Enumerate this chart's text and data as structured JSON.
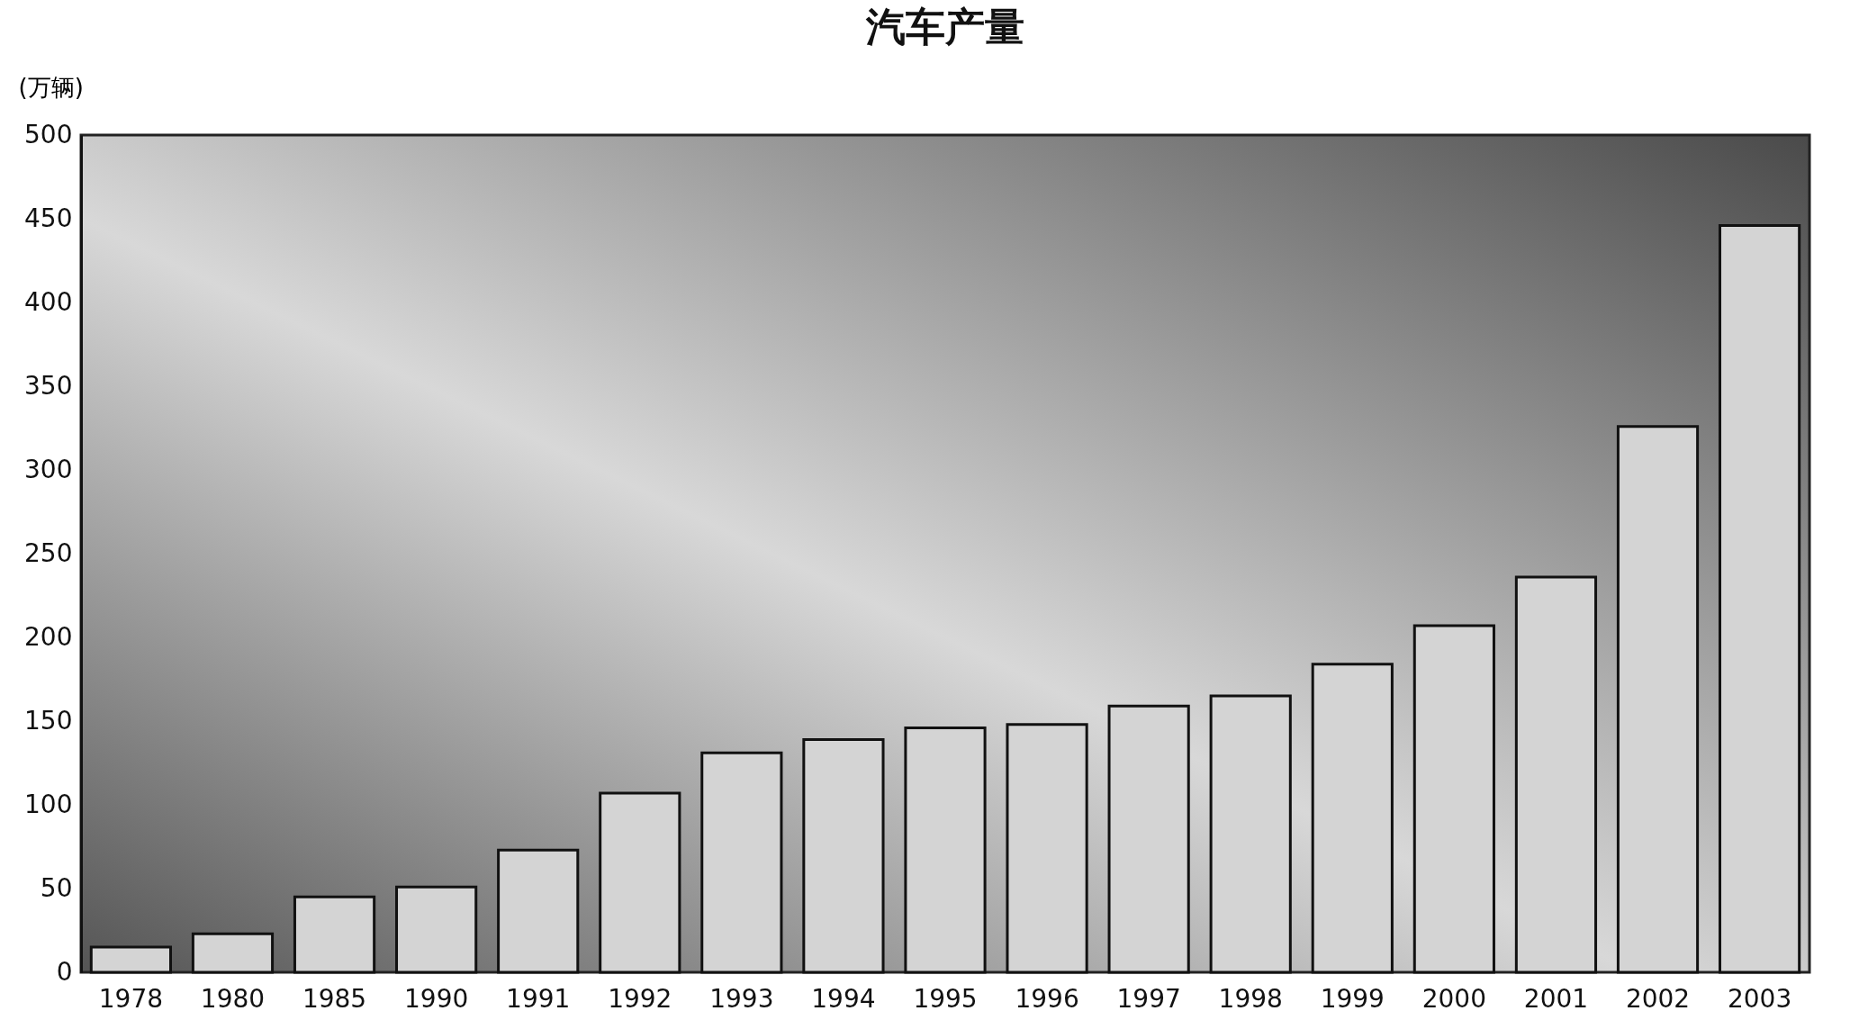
{
  "chart_data": {
    "type": "bar",
    "title": "汽车产量",
    "ylabel": "(万辆)",
    "categories": [
      "1978",
      "1980",
      "1985",
      "1990",
      "1991",
      "1992",
      "1993",
      "1994",
      "1995",
      "1996",
      "1997",
      "1998",
      "1999",
      "2000",
      "2001",
      "2002",
      "2003"
    ],
    "values": [
      15,
      23,
      45,
      51,
      73,
      107,
      131,
      139,
      146,
      148,
      159,
      165,
      184,
      207,
      236,
      326,
      446
    ],
    "color": "#d4d4d4",
    "ylim": [
      0,
      500
    ],
    "yticks": [
      0,
      50,
      100,
      150,
      200,
      250,
      300,
      350,
      400,
      450,
      500
    ],
    "grid": false
  }
}
